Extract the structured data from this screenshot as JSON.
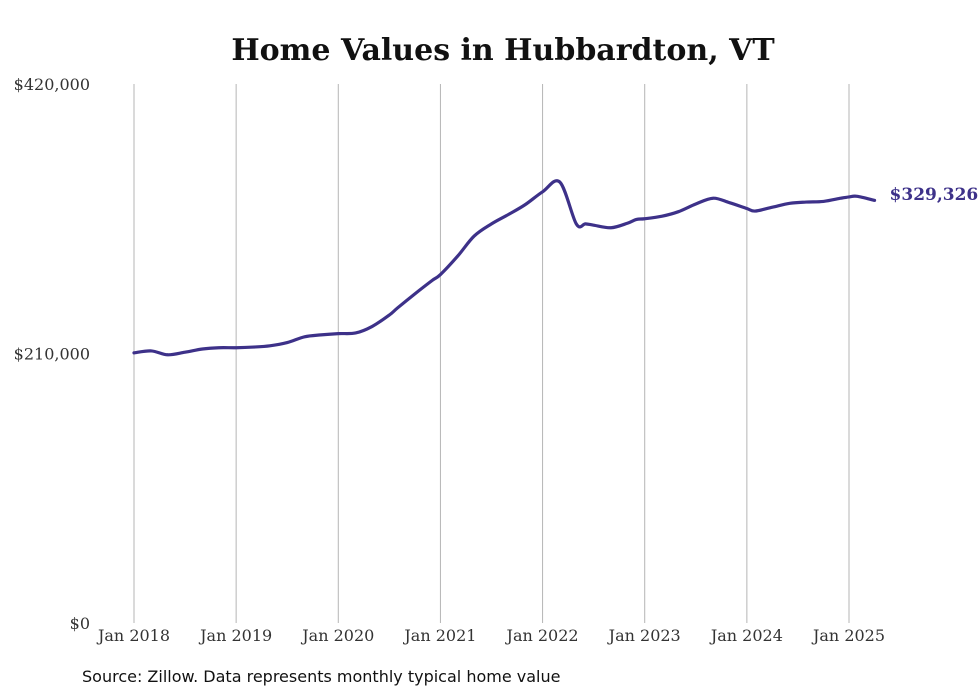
{
  "chart_data": {
    "type": "line",
    "title": "Home Values in Hubbardton, VT",
    "xlabel": "",
    "ylabel": "",
    "ylim": [
      0,
      420000
    ],
    "y_ticks": [
      {
        "value": 0,
        "label": "$0"
      },
      {
        "value": 210000,
        "label": "$210,000"
      },
      {
        "value": 420000,
        "label": "$420,000"
      }
    ],
    "x_ticks": [
      {
        "value": 2018.0,
        "label": "Jan 2018"
      },
      {
        "value": 2019.0,
        "label": "Jan 2019"
      },
      {
        "value": 2020.0,
        "label": "Jan 2020"
      },
      {
        "value": 2021.0,
        "label": "Jan 2021"
      },
      {
        "value": 2022.0,
        "label": "Jan 2022"
      },
      {
        "value": 2023.0,
        "label": "Jan 2023"
      },
      {
        "value": 2024.0,
        "label": "Jan 2024"
      },
      {
        "value": 2025.0,
        "label": "Jan 2025"
      }
    ],
    "xlim": [
      2018.0,
      2025.25
    ],
    "grid": "vertical",
    "series": [
      {
        "color": "#3d3189",
        "end_label": "$329,326",
        "x": [
          2018.0,
          2018.17,
          2018.33,
          2018.5,
          2018.67,
          2018.83,
          2019.0,
          2019.17,
          2019.33,
          2019.5,
          2019.67,
          2019.83,
          2020.0,
          2020.17,
          2020.33,
          2020.5,
          2020.58,
          2020.75,
          2020.92,
          2021.0,
          2021.17,
          2021.33,
          2021.5,
          2021.67,
          2021.83,
          2022.0,
          2022.17,
          2022.33,
          2022.42,
          2022.5,
          2022.67,
          2022.83,
          2022.92,
          2023.0,
          2023.17,
          2023.33,
          2023.5,
          2023.67,
          2023.83,
          2024.0,
          2024.08,
          2024.25,
          2024.42,
          2024.58,
          2024.75,
          2024.92,
          2025.0,
          2025.08,
          2025.25
        ],
        "y": [
          210500,
          212000,
          209000,
          211000,
          213500,
          214500,
          214500,
          215000,
          216000,
          218500,
          223000,
          224500,
          225500,
          226000,
          231000,
          240000,
          245500,
          256500,
          267000,
          271500,
          286000,
          301500,
          311000,
          318500,
          326000,
          336000,
          343500,
          311000,
          311000,
          310000,
          308000,
          311500,
          314500,
          315000,
          317000,
          320500,
          326500,
          331000,
          327500,
          323000,
          321000,
          324000,
          327000,
          328000,
          328500,
          331000,
          332000,
          332500,
          329326
        ]
      }
    ]
  },
  "source_text": "Source: Zillow. Data represents monthly typical home value"
}
